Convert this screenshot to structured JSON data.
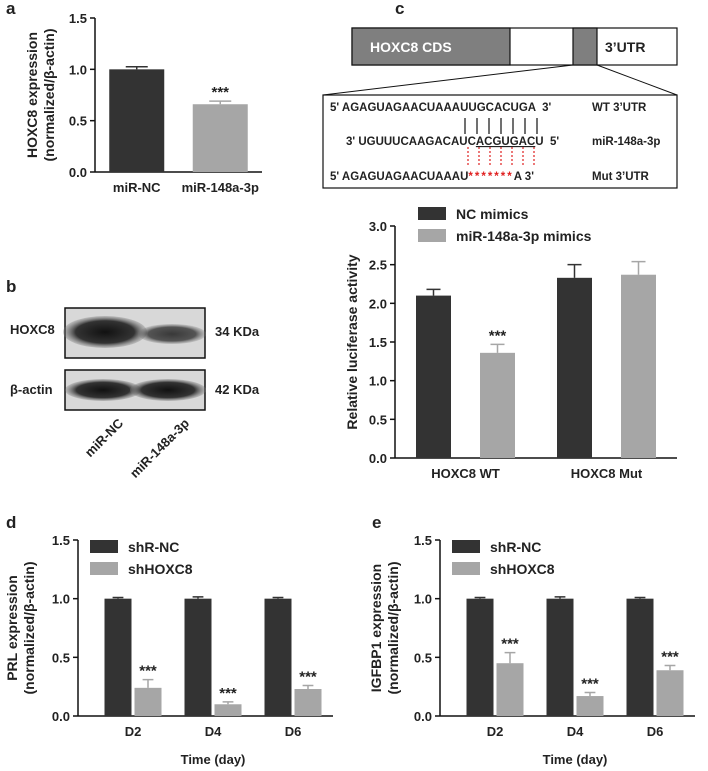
{
  "panel_labels": [
    "a",
    "b",
    "c",
    "d",
    "e"
  ],
  "chart_data": [
    {
      "type": "bar",
      "ylabel": [
        "HOXC8 expression",
        "(normalized/β-actin)"
      ],
      "categories": [
        "miR-NC",
        "miR-148a-3p"
      ],
      "values": [
        1.0,
        0.66
      ],
      "errors": [
        0.025,
        0.03
      ],
      "annotations": [
        null,
        "***"
      ],
      "colors": [
        "#333333",
        "#a6a6a6"
      ],
      "ylim": [
        0,
        1.5
      ],
      "yticks": [
        {
          "value": 0,
          "label": "0.0"
        },
        {
          "value": 0.5,
          "label": "0.5"
        },
        {
          "value": 1,
          "label": "1.0"
        },
        {
          "value": 1.5,
          "label": "1.5"
        }
      ]
    },
    {
      "type": "bar",
      "ylabel": [
        "Relative luciferase activity"
      ],
      "categories": [
        "HOXC8 WT",
        "HOXC8 Mut"
      ],
      "series": [
        {
          "name": "NC mimics",
          "color": "#333333",
          "values": [
            2.1,
            2.33
          ],
          "errors": [
            0.08,
            0.17
          ],
          "annotations": [
            null,
            null
          ]
        },
        {
          "name": "miR-148a-3p mimics",
          "color": "#a6a6a6",
          "values": [
            1.36,
            2.37
          ],
          "errors": [
            0.11,
            0.17
          ],
          "annotations": [
            "***",
            null
          ]
        }
      ],
      "ylim": [
        0,
        3
      ],
      "yticks": [
        {
          "value": 0,
          "label": "0.0"
        },
        {
          "value": 0.5,
          "label": "0.5"
        },
        {
          "value": 1,
          "label": "1.0"
        },
        {
          "value": 1.5,
          "label": "1.5"
        },
        {
          "value": 2,
          "label": "2.0"
        },
        {
          "value": 2.5,
          "label": "2.5"
        },
        {
          "value": 3,
          "label": "3.0"
        }
      ]
    },
    {
      "type": "bar",
      "ylabel": [
        "PRL expression",
        "(normalized/β-actin)"
      ],
      "xlabel": "Time (day)",
      "categories": [
        "D2",
        "D4",
        "D6"
      ],
      "series": [
        {
          "name": "shR-NC",
          "color": "#333333",
          "values": [
            1.0,
            1.0,
            1.0
          ],
          "errors": [
            0.01,
            0.015,
            0.01
          ],
          "annotations": [
            null,
            null,
            null
          ]
        },
        {
          "name": "shHOXC8",
          "color": "#a6a6a6",
          "values": [
            0.24,
            0.1,
            0.23
          ],
          "errors": [
            0.07,
            0.02,
            0.03
          ],
          "annotations": [
            "***",
            "***",
            "***"
          ]
        }
      ],
      "ylim": [
        0,
        1.5
      ],
      "yticks": [
        {
          "value": 0,
          "label": "0.0"
        },
        {
          "value": 0.5,
          "label": "0.5"
        },
        {
          "value": 1,
          "label": "1.0"
        },
        {
          "value": 1.5,
          "label": "1.5"
        }
      ]
    },
    {
      "type": "bar",
      "ylabel": [
        "IGFBP1 expression",
        "(normalized/β-actin)"
      ],
      "xlabel": "Time (day)",
      "categories": [
        "D2",
        "D4",
        "D6"
      ],
      "series": [
        {
          "name": "shR-NC",
          "color": "#333333",
          "values": [
            1.0,
            1.0,
            1.0
          ],
          "errors": [
            0.01,
            0.015,
            0.01
          ],
          "annotations": [
            null,
            null,
            null
          ]
        },
        {
          "name": "shHOXC8",
          "color": "#a6a6a6",
          "values": [
            0.45,
            0.17,
            0.39
          ],
          "errors": [
            0.09,
            0.03,
            0.04
          ],
          "annotations": [
            "***",
            "***",
            "***"
          ]
        }
      ],
      "ylim": [
        0,
        1.5
      ],
      "yticks": [
        {
          "value": 0,
          "label": "0.0"
        },
        {
          "value": 0.5,
          "label": "0.5"
        },
        {
          "value": 1,
          "label": "1.0"
        },
        {
          "value": 1.5,
          "label": "1.5"
        }
      ]
    }
  ],
  "blot": {
    "proteins": [
      "HOXC8",
      "β-actin"
    ],
    "sizes": [
      "34 KDa",
      "42 KDa"
    ],
    "lanes": [
      "miR-NC",
      "miR-148a-3p"
    ]
  },
  "diagram": {
    "gene": [
      "HOXC8 CDS",
      "3’UTR"
    ],
    "rows": [
      {
        "sequence": [
          "5' AGAGUAGAACUAAAUUGCACUGA  3'"
        ],
        "label": "WT 3’UTR"
      },
      {
        "sequence": [
          "3' UGUUUCAAGACAUC",
          "ACGUGAC",
          "U  5'"
        ],
        "label": "miR-148a-3p"
      },
      {
        "sequence": [
          "5' AGAGUAGAACUAAAU",
          "*******",
          "A 3'"
        ],
        "label": "Mut 3’UTR"
      }
    ]
  }
}
